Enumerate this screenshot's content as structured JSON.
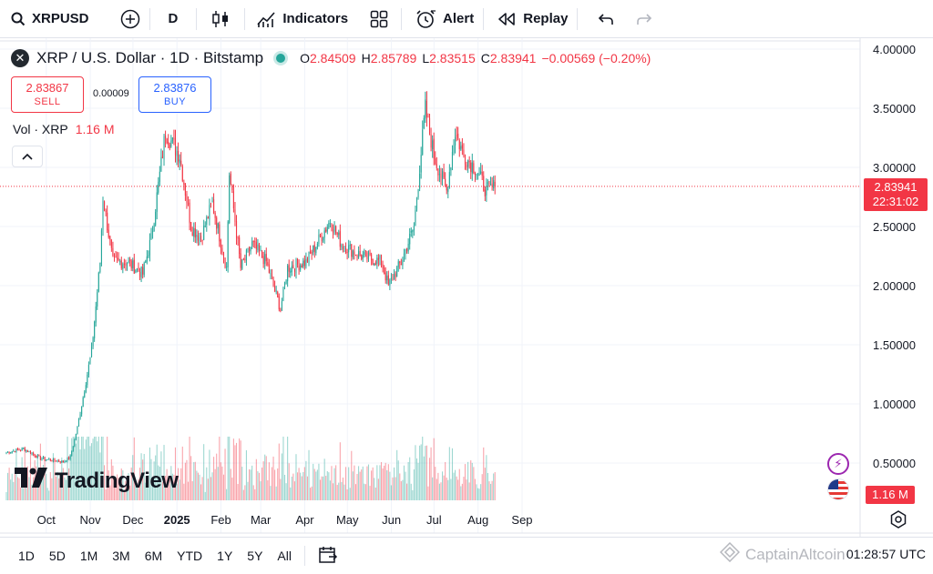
{
  "toolbar": {
    "symbol": "XRPUSD",
    "interval": "D",
    "indicators_label": "Indicators",
    "alert_label": "Alert",
    "replay_label": "Replay"
  },
  "legend": {
    "title": "XRP / U.S. Dollar · 1D · Bitstamp",
    "open_key": "O",
    "open": "2.84509",
    "high_key": "H",
    "high": "2.85789",
    "low_key": "L",
    "low": "2.83515",
    "close_key": "C",
    "close": "2.83941",
    "change": "−0.00569 (−0.20%)"
  },
  "trade": {
    "sell_price": "2.83867",
    "sell_label": "SELL",
    "spread": "0.00009",
    "buy_price": "2.83876",
    "buy_label": "BUY"
  },
  "volume_legend": {
    "label": "Vol · XRP",
    "value": "1.16 M"
  },
  "price_scale": {
    "last_price": "2.83941",
    "countdown": "22:31:02",
    "volume_tag": "1.16 M"
  },
  "branding": {
    "logo_text": "TradingView"
  },
  "bottom": {
    "ranges": [
      "1D",
      "5D",
      "1M",
      "3M",
      "6M",
      "YTD",
      "1Y",
      "5Y",
      "All"
    ],
    "clock": "01:28:57 UTC",
    "watermark": "CaptainAltcoin"
  },
  "colors": {
    "up": "#26a69a",
    "down": "#f23645",
    "accent": "#2962ff"
  },
  "chart_data": {
    "type": "candlestick",
    "symbol": "XRP / U.S. Dollar",
    "interval": "1D",
    "y_ticks": [
      "4.00000",
      "3.50000",
      "3.00000",
      "2.50000",
      "2.00000",
      "1.50000",
      "1.00000",
      "0.50000"
    ],
    "ylim": [
      0.5,
      4.0
    ],
    "x_ticks": [
      "Oct",
      "Nov",
      "Dec",
      "2025",
      "Feb",
      "Mar",
      "Apr",
      "May",
      "Jun",
      "Jul",
      "Aug",
      "Sep"
    ],
    "trend_anchors": [
      {
        "date": "2024-09-26",
        "close": 0.59
      },
      {
        "date": "2024-10-08",
        "close": 0.62
      },
      {
        "date": "2024-10-20",
        "close": 0.54
      },
      {
        "date": "2024-11-05",
        "close": 0.51
      },
      {
        "date": "2024-11-10",
        "close": 0.55
      },
      {
        "date": "2024-11-15",
        "close": 0.8
      },
      {
        "date": "2024-11-20",
        "close": 1.12
      },
      {
        "date": "2024-11-25",
        "close": 1.45
      },
      {
        "date": "2024-12-01",
        "close": 2.2
      },
      {
        "date": "2024-12-03",
        "close": 2.75
      },
      {
        "date": "2024-12-10",
        "close": 2.2
      },
      {
        "date": "2024-12-20",
        "close": 2.2
      },
      {
        "date": "2024-12-31",
        "close": 2.1
      },
      {
        "date": "2025-01-06",
        "close": 2.4
      },
      {
        "date": "2025-01-16",
        "close": 3.3
      },
      {
        "date": "2025-01-26",
        "close": 3.1
      },
      {
        "date": "2025-02-03",
        "close": 2.5
      },
      {
        "date": "2025-02-10",
        "close": 2.4
      },
      {
        "date": "2025-02-18",
        "close": 2.7
      },
      {
        "date": "2025-02-28",
        "close": 2.15
      },
      {
        "date": "2025-03-02",
        "close": 2.95
      },
      {
        "date": "2025-03-10",
        "close": 2.15
      },
      {
        "date": "2025-03-18",
        "close": 2.35
      },
      {
        "date": "2025-03-28",
        "close": 2.2
      },
      {
        "date": "2025-04-07",
        "close": 1.8
      },
      {
        "date": "2025-04-12",
        "close": 2.15
      },
      {
        "date": "2025-04-25",
        "close": 2.2
      },
      {
        "date": "2025-05-12",
        "close": 2.55
      },
      {
        "date": "2025-05-20",
        "close": 2.35
      },
      {
        "date": "2025-06-03",
        "close": 2.25
      },
      {
        "date": "2025-06-17",
        "close": 2.2
      },
      {
        "date": "2025-06-22",
        "close": 2.0
      },
      {
        "date": "2025-07-01",
        "close": 2.2
      },
      {
        "date": "2025-07-10",
        "close": 2.5
      },
      {
        "date": "2025-07-18",
        "close": 3.5
      },
      {
        "date": "2025-07-24",
        "close": 3.1
      },
      {
        "date": "2025-08-02",
        "close": 2.8
      },
      {
        "date": "2025-08-08",
        "close": 3.3
      },
      {
        "date": "2025-08-14",
        "close": 3.1
      },
      {
        "date": "2025-08-22",
        "close": 3.0
      },
      {
        "date": "2025-08-30",
        "close": 2.8
      },
      {
        "date": "2025-09-05",
        "close": 2.84
      }
    ]
  }
}
